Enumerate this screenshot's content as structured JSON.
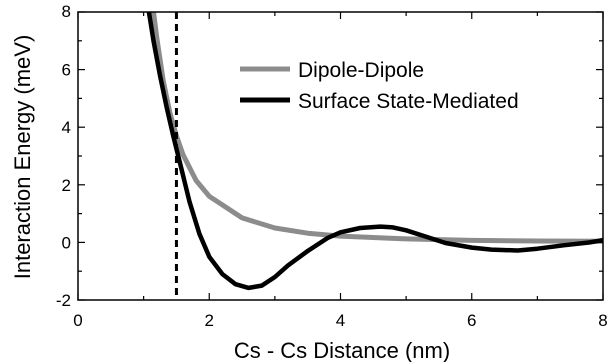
{
  "chart_data": {
    "type": "line",
    "xlabel": "Cs - Cs Distance (nm)",
    "ylabel": "Interaction Energy (meV)",
    "xlim": [
      0,
      8
    ],
    "ylim": [
      -2,
      8
    ],
    "x_ticks": [
      "0",
      "2",
      "4",
      "6",
      "8"
    ],
    "y_ticks": [
      "-2",
      "0",
      "2",
      "4",
      "6",
      "8"
    ],
    "grid": false,
    "legend": "top-right",
    "series": [
      {
        "name": "Dipole-Dipole",
        "color": "#8c8c8c",
        "x": [
          1.15,
          1.2,
          1.3,
          1.4,
          1.5,
          1.6,
          1.8,
          2.0,
          2.5,
          3.0,
          3.5,
          4.0,
          5.0,
          6.0,
          7.0,
          8.0
        ],
        "y": [
          8.0,
          7.1,
          5.6,
          4.5,
          3.7,
          3.05,
          2.15,
          1.6,
          0.85,
          0.5,
          0.32,
          0.22,
          0.12,
          0.07,
          0.05,
          0.04
        ]
      },
      {
        "name": "Surface State-Mediated",
        "color": "#000000",
        "x": [
          1.08,
          1.15,
          1.25,
          1.35,
          1.45,
          1.55,
          1.7,
          1.85,
          2.0,
          2.2,
          2.4,
          2.6,
          2.8,
          3.0,
          3.2,
          3.5,
          3.8,
          4.0,
          4.3,
          4.6,
          4.8,
          5.0,
          5.3,
          5.6,
          6.0,
          6.3,
          6.7,
          7.0,
          7.4,
          7.8,
          8.0
        ],
        "y": [
          8.0,
          7.0,
          5.8,
          4.7,
          3.7,
          2.8,
          1.4,
          0.3,
          -0.5,
          -1.1,
          -1.45,
          -1.58,
          -1.5,
          -1.2,
          -0.8,
          -0.3,
          0.15,
          0.35,
          0.5,
          0.55,
          0.52,
          0.42,
          0.2,
          -0.02,
          -0.18,
          -0.25,
          -0.28,
          -0.22,
          -0.1,
          0.0,
          0.08
        ]
      }
    ],
    "reference_line": {
      "x": 1.5,
      "style": "dashed",
      "color": "#000000"
    }
  }
}
